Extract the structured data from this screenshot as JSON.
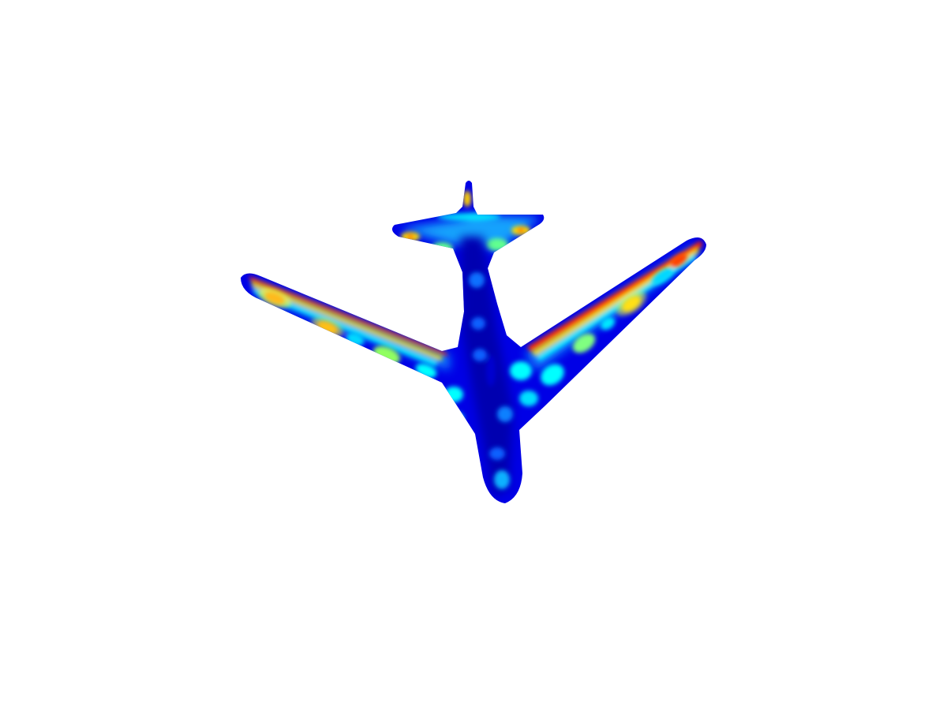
{
  "scene": {
    "background_color": "#ffffff",
    "object": "airplane-mesh",
    "view": "top-down",
    "colormap": "jet",
    "colormap_stops": [
      "#00008f",
      "#0000ff",
      "#0080ff",
      "#00ffff",
      "#80ff80",
      "#ffff00",
      "#ff8000",
      "#ff0000",
      "#800000"
    ]
  }
}
